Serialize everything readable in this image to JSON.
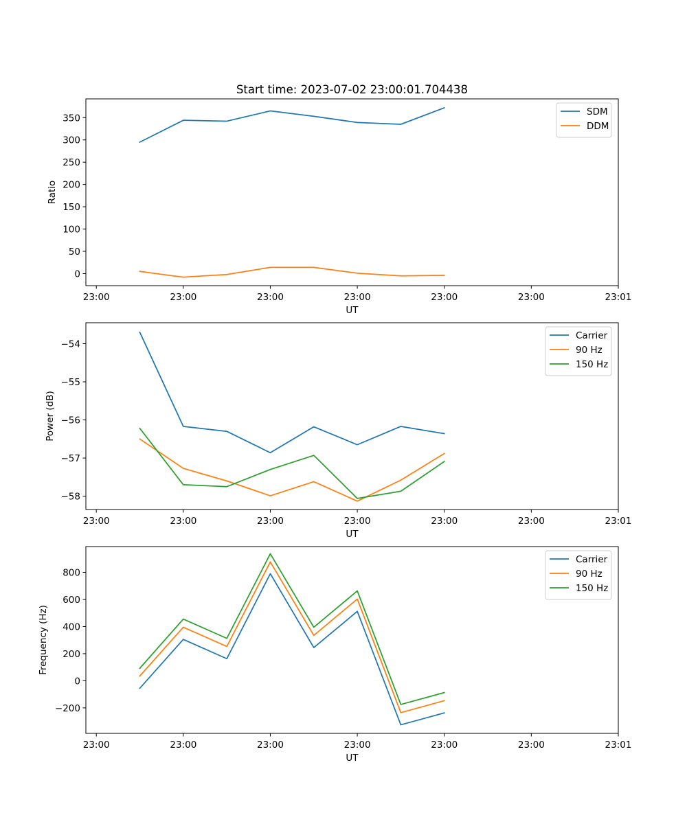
{
  "figure": {
    "title": "Start time: 2023-07-02 23:00:01.704438"
  },
  "chart_data": [
    {
      "type": "line",
      "title": "Start time: 2023-07-02 23:00:01.704438",
      "xlabel": "UT",
      "ylabel": "Ratio",
      "x": [
        0.5,
        1.0,
        1.5,
        2.0,
        2.5,
        3.0,
        3.5,
        4.0
      ],
      "xlim": [
        -0.12,
        6.0
      ],
      "xticks": [
        0,
        1,
        2,
        3,
        4,
        5,
        6
      ],
      "xtick_labels": [
        "23:00",
        "23:00",
        "23:00",
        "23:00",
        "23:00",
        "23:00",
        "23:01"
      ],
      "ylim": [
        -27,
        392
      ],
      "yticks": [
        0,
        50,
        100,
        150,
        200,
        250,
        300,
        350
      ],
      "ytick_labels": [
        "0",
        "50",
        "100",
        "150",
        "200",
        "250",
        "300",
        "350"
      ],
      "legend": "top-right",
      "series": [
        {
          "name": "SDM",
          "color": "#1f77b4",
          "values": [
            295,
            344,
            342,
            365,
            353,
            339,
            335,
            372
          ]
        },
        {
          "name": "DDM",
          "color": "#ff7f0e",
          "values": [
            5,
            -8,
            -2,
            14,
            14,
            1,
            -5,
            -4
          ]
        }
      ]
    },
    {
      "type": "line",
      "title": "",
      "xlabel": "UT",
      "ylabel": "Power (dB)",
      "x": [
        0.5,
        1.0,
        1.5,
        2.0,
        2.5,
        3.0,
        3.5,
        4.0
      ],
      "xlim": [
        -0.12,
        6.0
      ],
      "xticks": [
        0,
        1,
        2,
        3,
        4,
        5,
        6
      ],
      "xtick_labels": [
        "23:00",
        "23:00",
        "23:00",
        "23:00",
        "23:00",
        "23:00",
        "23:01"
      ],
      "ylim": [
        -58.35,
        -53.45
      ],
      "yticks": [
        -58,
        -57,
        -56,
        -55,
        -54
      ],
      "ytick_labels": [
        "−58",
        "−57",
        "−56",
        "−55",
        "−54"
      ],
      "legend": "top-right",
      "series": [
        {
          "name": "Carrier",
          "color": "#1f77b4",
          "values": [
            -53.7,
            -56.17,
            -56.3,
            -56.86,
            -56.18,
            -56.65,
            -56.17,
            -56.36
          ]
        },
        {
          "name": "90 Hz",
          "color": "#ff7f0e",
          "values": [
            -56.5,
            -57.27,
            -57.6,
            -57.99,
            -57.62,
            -58.13,
            -57.58,
            -56.88
          ]
        },
        {
          "name": "150 Hz",
          "color": "#2ca02c",
          "values": [
            -56.22,
            -57.7,
            -57.75,
            -57.3,
            -56.93,
            -58.06,
            -57.87,
            -57.09
          ]
        }
      ]
    },
    {
      "type": "line",
      "title": "",
      "xlabel": "UT",
      "ylabel": "Frequency (Hz)",
      "x": [
        0.5,
        1.0,
        1.5,
        2.0,
        2.5,
        3.0,
        3.5,
        4.0
      ],
      "xlim": [
        -0.12,
        6.0
      ],
      "xticks": [
        0,
        1,
        2,
        3,
        4,
        5,
        6
      ],
      "xtick_labels": [
        "23:00",
        "23:00",
        "23:00",
        "23:00",
        "23:00",
        "23:00",
        "23:01"
      ],
      "ylim": [
        -388,
        990
      ],
      "yticks": [
        -200,
        0,
        200,
        400,
        600,
        800
      ],
      "ytick_labels": [
        "−200",
        "0",
        "200",
        "400",
        "600",
        "800"
      ],
      "legend": "top-right",
      "series": [
        {
          "name": "Carrier",
          "color": "#1f77b4",
          "values": [
            -55,
            305,
            163,
            790,
            245,
            512,
            -325,
            -237
          ]
        },
        {
          "name": "90 Hz",
          "color": "#ff7f0e",
          "values": [
            35,
            395,
            253,
            877,
            335,
            603,
            -235,
            -147
          ]
        },
        {
          "name": "150 Hz",
          "color": "#2ca02c",
          "values": [
            92,
            455,
            313,
            937,
            395,
            663,
            -175,
            -87
          ]
        }
      ]
    }
  ]
}
